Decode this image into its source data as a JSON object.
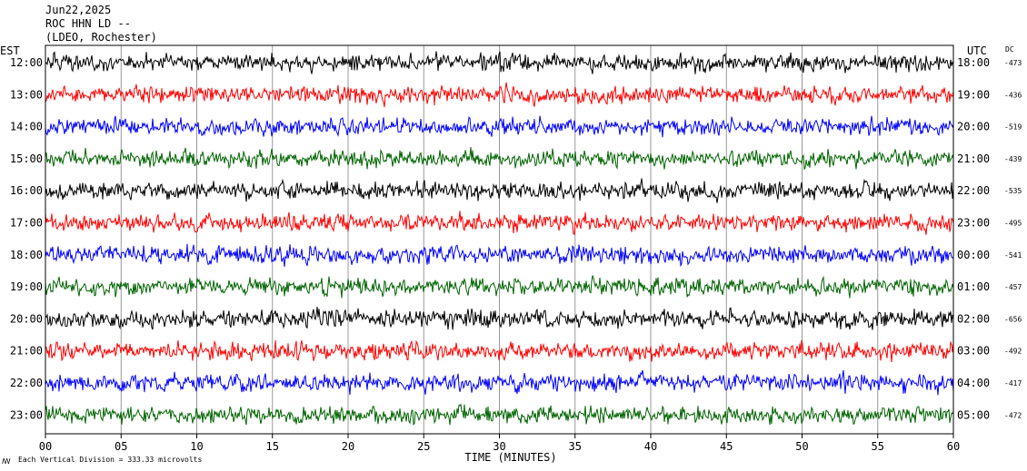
{
  "header": {
    "date": "Jun22,2025",
    "station": "ROC HHN LD --",
    "network": "(LDEO, Rochester)"
  },
  "left_axis_title": "EST",
  "right_axis_title": "UTC",
  "dc_title": "DC",
  "footnote": "Each Vertical Division =  333.33 microvolts",
  "chart_data": {
    "type": "line",
    "title": "",
    "xlabel": "TIME (MINUTES)",
    "ylabel": "",
    "xlim": [
      0,
      60
    ],
    "x_ticks": [
      "00",
      "05",
      "10",
      "15",
      "20",
      "25",
      "30",
      "35",
      "40",
      "45",
      "50",
      "55",
      "60"
    ],
    "grid": true,
    "series": [
      {
        "est": "12:00",
        "utc": "18:00",
        "dc": "-473",
        "color": "#000000"
      },
      {
        "est": "13:00",
        "utc": "19:00",
        "dc": "-436",
        "color": "#ff0000"
      },
      {
        "est": "14:00",
        "utc": "20:00",
        "dc": "-519",
        "color": "#0000ff"
      },
      {
        "est": "15:00",
        "utc": "21:00",
        "dc": "-439",
        "color": "#006400"
      },
      {
        "est": "16:00",
        "utc": "22:00",
        "dc": "-535",
        "color": "#000000"
      },
      {
        "est": "17:00",
        "utc": "23:00",
        "dc": "-495",
        "color": "#ff0000"
      },
      {
        "est": "18:00",
        "utc": "00:00",
        "dc": "-541",
        "color": "#0000ff"
      },
      {
        "est": "19:00",
        "utc": "01:00",
        "dc": "-457",
        "color": "#006400"
      },
      {
        "est": "20:00",
        "utc": "02:00",
        "dc": "-656",
        "color": "#000000"
      },
      {
        "est": "21:00",
        "utc": "03:00",
        "dc": "-492",
        "color": "#ff0000"
      },
      {
        "est": "22:00",
        "utc": "04:00",
        "dc": "-417",
        "color": "#0000ff"
      },
      {
        "est": "23:00",
        "utc": "05:00",
        "dc": "-472",
        "color": "#006400"
      }
    ]
  }
}
